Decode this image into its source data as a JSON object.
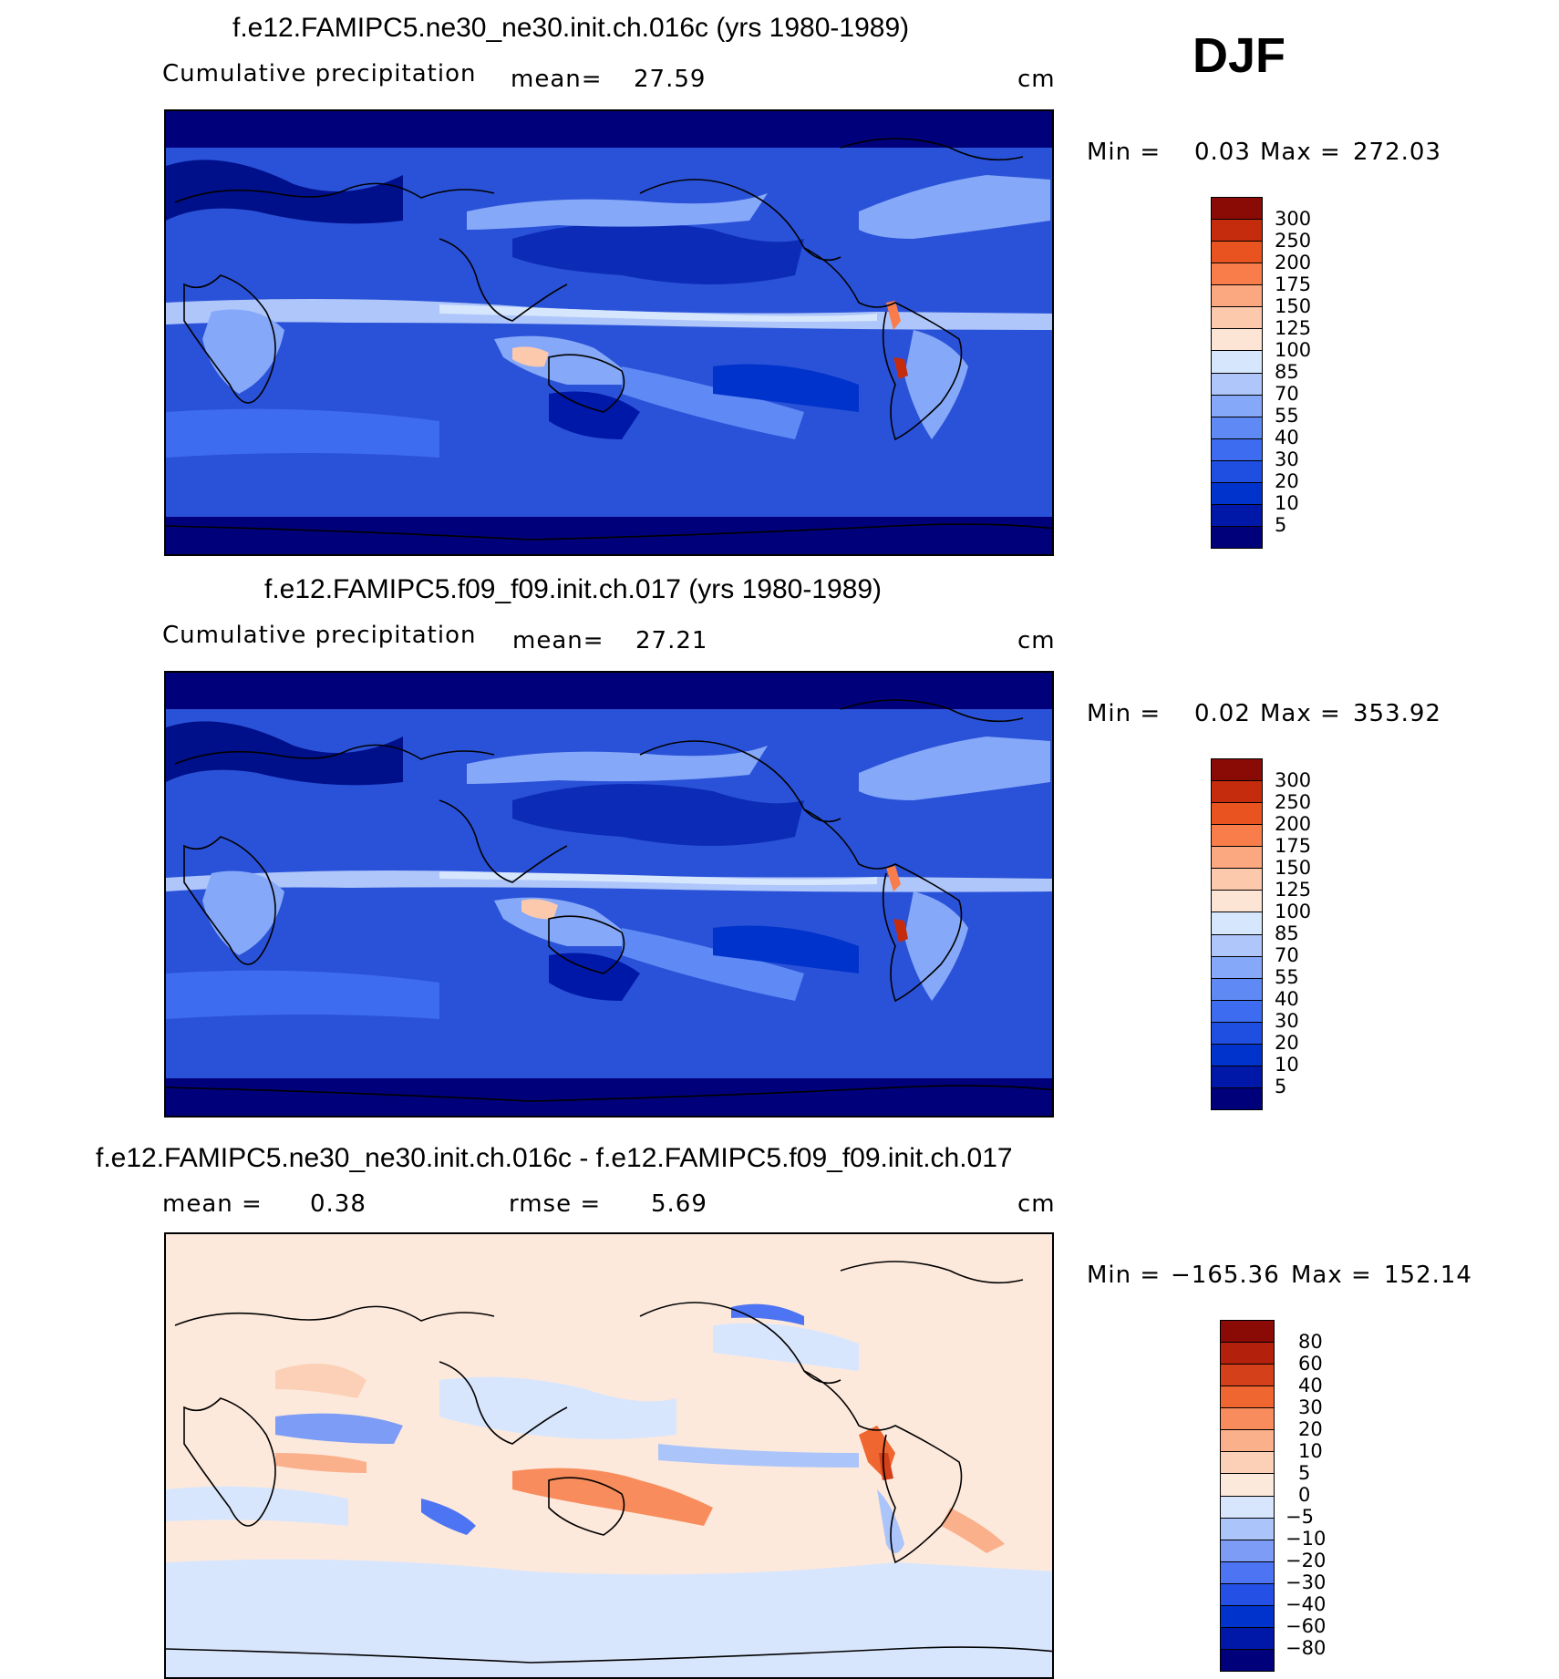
{
  "season": "DJF",
  "colors": {
    "precip_scale": [
      "#00007a",
      "#0018a8",
      "#0033cc",
      "#1f4fe0",
      "#3d6cf0",
      "#5f8af5",
      "#86a8f8",
      "#aec6fa",
      "#d6e6fc",
      "#fde5d6",
      "#fcc9ad",
      "#fba77f",
      "#f87d4b",
      "#e8531f",
      "#c52c0e",
      "#8a0a06"
    ],
    "diff_scale": [
      "#00007a",
      "#0018a8",
      "#0033cc",
      "#2450e6",
      "#4d74f2",
      "#7d9cf6",
      "#abc4fa",
      "#d8e6fd",
      "#fde9dc",
      "#fcd0b6",
      "#fbb08c",
      "#f88c5c",
      "#ef6630",
      "#d4401a",
      "#b3210d",
      "#8a0a06"
    ]
  },
  "chart_data": [
    {
      "type": "heatmap",
      "title": "f.e12.FAMIPC5.ne30_ne30.init.ch.016c (yrs 1980-1989)",
      "left_label": "Cumulative precipitation",
      "stat_label": "mean=",
      "stat_value": "27.59",
      "units": "cm",
      "min_label": "Min =",
      "min_value": "0.03",
      "max_label": "Max =",
      "max_value": "272.03",
      "colorbar_levels": [
        "300",
        "250",
        "200",
        "175",
        "150",
        "125",
        "100",
        "85",
        "70",
        "55",
        "40",
        "30",
        "20",
        "10",
        "5"
      ]
    },
    {
      "type": "heatmap",
      "title": "f.e12.FAMIPC5.f09_f09.init.ch.017 (yrs 1980-1989)",
      "left_label": "Cumulative precipitation",
      "stat_label": "mean=",
      "stat_value": "27.21",
      "units": "cm",
      "min_label": "Min =",
      "min_value": "0.02",
      "max_label": "Max =",
      "max_value": "353.92",
      "colorbar_levels": [
        "300",
        "250",
        "200",
        "175",
        "150",
        "125",
        "100",
        "85",
        "70",
        "55",
        "40",
        "30",
        "20",
        "10",
        "5"
      ]
    },
    {
      "type": "heatmap",
      "title": "f.e12.FAMIPC5.ne30_ne30.init.ch.016c - f.e12.FAMIPC5.f09_f09.init.ch.017",
      "left_label": "mean =",
      "left_value": "0.38",
      "stat_label": "rmse =",
      "stat_value": "5.69",
      "units": "cm",
      "min_label": "Min =",
      "min_value": "−165.36",
      "max_label": "Max =",
      "max_value": "152.14",
      "colorbar_levels": [
        "80",
        "60",
        "40",
        "30",
        "20",
        "10",
        "5",
        "0",
        "−5",
        "−10",
        "−20",
        "−30",
        "−40",
        "−60",
        "−80"
      ]
    }
  ]
}
